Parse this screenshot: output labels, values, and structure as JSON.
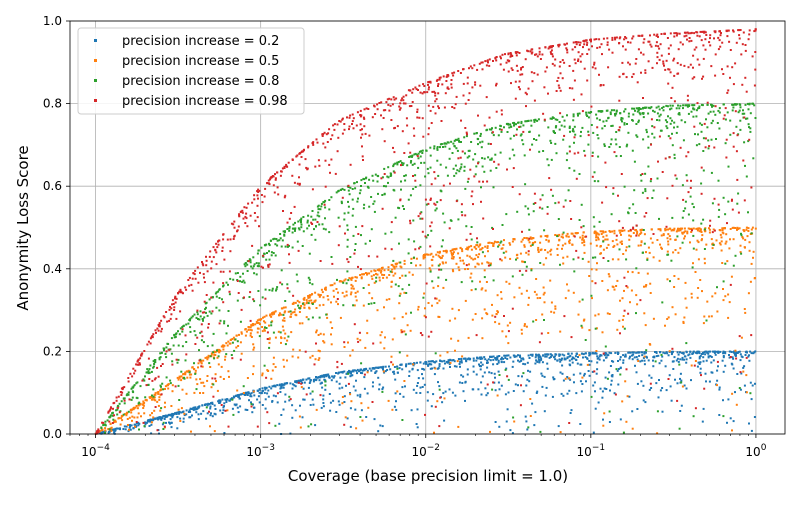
{
  "chart_data": {
    "type": "scatter",
    "title": "",
    "xlabel": "Coverage (base precision limit = 1.0)",
    "ylabel": "Anonymity Loss Score",
    "xscale": "log",
    "xlim": [
      7e-05,
      1.5
    ],
    "ylim": [
      0.0,
      1.0
    ],
    "grid": true,
    "legend_position": "top-left",
    "x_ticks": [
      {
        "value": 0.0001,
        "base": "10",
        "exp": "−4"
      },
      {
        "value": 0.001,
        "base": "10",
        "exp": "−3"
      },
      {
        "value": 0.01,
        "base": "10",
        "exp": "−2"
      },
      {
        "value": 0.1,
        "base": "10",
        "exp": "−1"
      },
      {
        "value": 1,
        "base": "10",
        "exp": "0"
      }
    ],
    "y_ticks": [
      {
        "value": 0.0,
        "label": "0.0"
      },
      {
        "value": 0.2,
        "label": "0.2"
      },
      {
        "value": 0.4,
        "label": "0.4"
      },
      {
        "value": 0.6,
        "label": "0.6"
      },
      {
        "value": 0.8,
        "label": "0.8"
      },
      {
        "value": 1.0,
        "label": "1.0"
      }
    ],
    "series": [
      {
        "name": "precision increase = 0.2",
        "precision_increase": 0.2,
        "color": "#1f77b4",
        "envelope": [
          [
            0.0001,
            0.0
          ],
          [
            0.0003,
            0.05
          ],
          [
            0.001,
            0.11
          ],
          [
            0.003,
            0.15
          ],
          [
            0.01,
            0.175
          ],
          [
            0.03,
            0.19
          ],
          [
            0.1,
            0.196
          ],
          [
            0.3,
            0.199
          ],
          [
            1.0,
            0.2
          ]
        ]
      },
      {
        "name": "precision increase = 0.5",
        "precision_increase": 0.5,
        "color": "#ff7f0e",
        "envelope": [
          [
            0.0001,
            0.0
          ],
          [
            0.0003,
            0.13
          ],
          [
            0.001,
            0.28
          ],
          [
            0.003,
            0.37
          ],
          [
            0.01,
            0.435
          ],
          [
            0.03,
            0.47
          ],
          [
            0.1,
            0.49
          ],
          [
            0.3,
            0.497
          ],
          [
            1.0,
            0.5
          ]
        ]
      },
      {
        "name": "precision increase = 0.8",
        "precision_increase": 0.8,
        "color": "#2ca02c",
        "envelope": [
          [
            0.0001,
            0.0
          ],
          [
            0.0003,
            0.24
          ],
          [
            0.001,
            0.45
          ],
          [
            0.003,
            0.59
          ],
          [
            0.01,
            0.69
          ],
          [
            0.03,
            0.75
          ],
          [
            0.1,
            0.78
          ],
          [
            0.3,
            0.795
          ],
          [
            1.0,
            0.8
          ]
        ]
      },
      {
        "name": "precision increase = 0.98",
        "precision_increase": 0.98,
        "color": "#d62728",
        "envelope": [
          [
            0.0001,
            0.0
          ],
          [
            0.0003,
            0.33
          ],
          [
            0.001,
            0.6
          ],
          [
            0.003,
            0.76
          ],
          [
            0.01,
            0.85
          ],
          [
            0.03,
            0.92
          ],
          [
            0.1,
            0.955
          ],
          [
            0.3,
            0.97
          ],
          [
            1.0,
            0.98
          ]
        ]
      }
    ]
  }
}
